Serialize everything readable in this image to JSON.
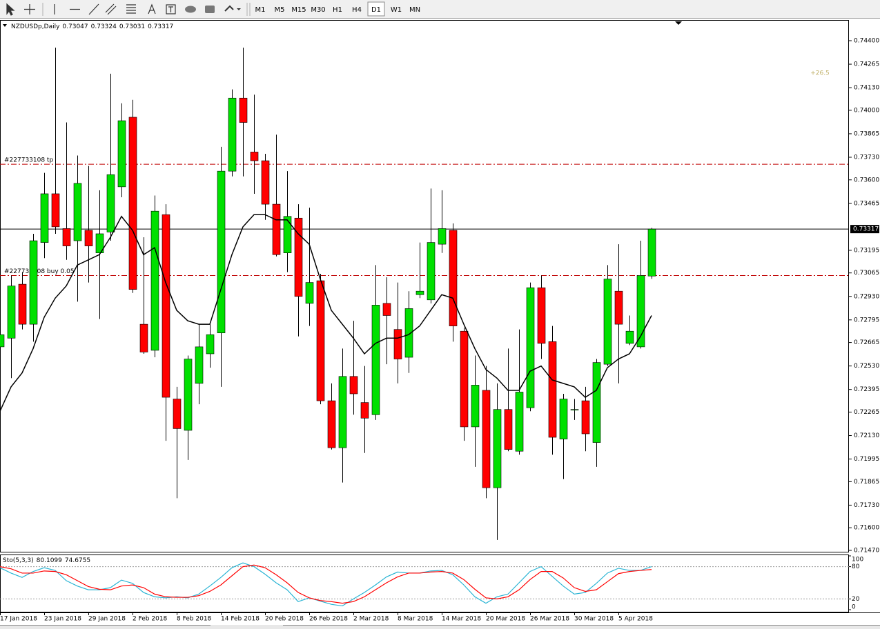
{
  "toolbar": {
    "timeframes": [
      "M1",
      "M5",
      "M15",
      "M30",
      "H1",
      "H4",
      "D1",
      "W1",
      "MN"
    ],
    "active": "D1"
  },
  "chart_data": [
    {
      "type": "candlestick",
      "symbol": "NZDUSDp,Daily",
      "categories": [
        "17 Jan 2018",
        null,
        null,
        null,
        "23 Jan 2018",
        null,
        null,
        null,
        "29 Jan 2018",
        null,
        null,
        null,
        "2 Feb 2018",
        null,
        null,
        null,
        "8 Feb 2018",
        null,
        null,
        null,
        "14 Feb 2018",
        null,
        null,
        null,
        "20 Feb 2018",
        null,
        null,
        null,
        "26 Feb 2018",
        null,
        null,
        null,
        "2 Mar 2018",
        null,
        null,
        null,
        "8 Mar 2018",
        null,
        null,
        null,
        "14 Mar 2018",
        null,
        null,
        null,
        "20 Mar 2018",
        null,
        null,
        null,
        "26 Mar 2018",
        null,
        null,
        null,
        "30 Mar 2018",
        null,
        null,
        null,
        "5 Apr 2018",
        null,
        null,
        null
      ],
      "open": [
        0.7264,
        0.7269,
        0.73,
        0.7277,
        0.7324,
        0.7352,
        0.7332,
        0.7325,
        0.7331,
        0.7318,
        0.733,
        0.7356,
        0.7396,
        0.7277,
        0.7262,
        0.734,
        0.7234,
        0.7216,
        0.7243,
        0.726,
        0.7272,
        0.7365,
        0.7407,
        0.7376,
        0.7371,
        0.7346,
        0.7318,
        0.7338,
        0.7289,
        0.7302,
        0.7233,
        0.7206,
        0.7247,
        0.7232,
        0.7225,
        0.7289,
        0.7274,
        0.7258,
        0.7294,
        0.7291,
        0.7323,
        0.7331,
        0.7273,
        0.7218,
        0.7239,
        0.7183,
        0.7228,
        0.7204,
        0.7229,
        0.7298,
        0.7267,
        0.7211,
        0.7228,
        0.7233,
        0.7209,
        0.7254,
        0.7296,
        0.7266,
        0.7264,
        0.73047
      ],
      "high": [
        0.7277,
        0.7305,
        0.7307,
        0.7329,
        0.7364,
        0.7436,
        0.7393,
        0.7374,
        0.7368,
        0.7354,
        0.7421,
        0.7404,
        0.7406,
        0.7327,
        0.7351,
        0.7346,
        0.7241,
        0.7259,
        0.7277,
        0.7277,
        0.7379,
        0.7412,
        0.7436,
        0.7409,
        0.7375,
        0.7386,
        0.7365,
        0.7346,
        0.7344,
        0.7306,
        0.7243,
        0.7263,
        0.7279,
        0.7253,
        0.7311,
        0.7304,
        0.7301,
        0.7296,
        0.7324,
        0.7355,
        0.7354,
        0.7335,
        0.7275,
        0.7259,
        0.7253,
        0.7243,
        0.7263,
        0.7274,
        0.7301,
        0.7305,
        0.7276,
        0.7237,
        0.7234,
        0.7241,
        0.7257,
        0.7311,
        0.7323,
        0.7282,
        0.7325,
        0.73324
      ],
      "low": [
        0.7245,
        0.7246,
        0.7274,
        0.7267,
        0.7315,
        0.7329,
        0.7314,
        0.729,
        0.7301,
        0.728,
        0.7325,
        0.735,
        0.7295,
        0.726,
        0.7258,
        0.721,
        0.7177,
        0.7199,
        0.7231,
        0.7252,
        0.7241,
        0.7362,
        0.7362,
        0.7352,
        0.7337,
        0.7316,
        0.7307,
        0.727,
        0.7276,
        0.7231,
        0.7205,
        0.7186,
        0.7225,
        0.7203,
        0.7222,
        0.7254,
        0.7243,
        0.7249,
        0.7292,
        0.7289,
        0.7318,
        0.7267,
        0.721,
        0.7195,
        0.7177,
        0.7153,
        0.7204,
        0.7202,
        0.7227,
        0.7257,
        0.7202,
        0.7188,
        0.7222,
        0.7204,
        0.7195,
        0.7253,
        0.7243,
        0.7265,
        0.7263,
        0.73031
      ],
      "close": [
        0.7271,
        0.7299,
        0.7277,
        0.7325,
        0.7352,
        0.7333,
        0.7322,
        0.7358,
        0.7322,
        0.7329,
        0.7363,
        0.7394,
        0.7297,
        0.7261,
        0.7342,
        0.7235,
        0.7217,
        0.7257,
        0.7264,
        0.7271,
        0.7365,
        0.7407,
        0.7393,
        0.7371,
        0.7346,
        0.7317,
        0.7339,
        0.7293,
        0.7301,
        0.7233,
        0.7206,
        0.7247,
        0.7237,
        0.7223,
        0.7288,
        0.7282,
        0.7257,
        0.7286,
        0.7296,
        0.7324,
        0.7332,
        0.7276,
        0.7218,
        0.7242,
        0.7183,
        0.7228,
        0.7205,
        0.7238,
        0.7298,
        0.7266,
        0.7212,
        0.7234,
        0.7228,
        0.7214,
        0.7255,
        0.7303,
        0.7277,
        0.7273,
        0.7305,
        0.73317
      ],
      "up_color": "#00e000",
      "down_color": "#ff0000",
      "ma": {
        "color": "#000000",
        "values": [
          0.7227,
          0.7241,
          0.7249,
          0.7263,
          0.7281,
          0.7292,
          0.7299,
          0.7311,
          0.7314,
          0.7317,
          0.7327,
          0.7339,
          0.7331,
          0.7317,
          0.7321,
          0.7301,
          0.7285,
          0.7279,
          0.7277,
          0.7277,
          0.7297,
          0.7317,
          0.7333,
          0.734,
          0.734,
          0.7337,
          0.7337,
          0.7329,
          0.7323,
          0.7303,
          0.7285,
          0.7277,
          0.7269,
          0.726,
          0.7266,
          0.7269,
          0.7269,
          0.7271,
          0.7276,
          0.7285,
          0.7294,
          0.7292,
          0.7277,
          0.7263,
          0.7251,
          0.7246,
          0.7239,
          0.7239,
          0.725,
          0.7253,
          0.7245,
          0.7243,
          0.7241,
          0.7235,
          0.7239,
          0.7252,
          0.7257,
          0.726,
          0.727,
          0.7282
        ]
      },
      "levels": [
        {
          "label": "#227733108 tp",
          "value": 0.7369,
          "color": "#c00000"
        },
        {
          "label": "#227733108 buy 0.05",
          "value": 0.7305,
          "color": "#c00000"
        }
      ],
      "annotation": "+26.5",
      "ylim": [
        0.71462,
        0.74515
      ],
      "yticks": [
        {
          "value": 0.744,
          "label": "0.74400"
        },
        0.74265,
        {
          "value": 0.7413,
          "label": "0.74130"
        },
        {
          "value": 0.74,
          "label": "0.74000"
        },
        0.73865,
        {
          "value": 0.7373,
          "label": "0.73730"
        },
        {
          "value": 0.736,
          "label": "0.73600"
        },
        0.73465,
        0.73195,
        0.73065,
        {
          "value": 0.7293,
          "label": "0.72930"
        },
        0.72795,
        0.72665,
        {
          "value": 0.7253,
          "label": "0.72530"
        },
        0.72395,
        0.72265,
        {
          "value": 0.7213,
          "label": "0.72130"
        },
        0.71995,
        0.71865,
        {
          "value": 0.7173,
          "label": "0.71730"
        },
        {
          "value": 0.716,
          "label": "0.71600"
        },
        {
          "value": 0.7147,
          "label": "0.71470"
        }
      ]
    },
    {
      "type": "line",
      "title": "Sto(5,3,3)",
      "series": [
        {
          "color": "#2ab4d4",
          "values": [
            78,
            68,
            60,
            71,
            78,
            73,
            54,
            44,
            37,
            37,
            41,
            55,
            49,
            32,
            24,
            22,
            24,
            22,
            29,
            44,
            60,
            78,
            87,
            80,
            66,
            50,
            37,
            15,
            22,
            16,
            10,
            7,
            20,
            32,
            46,
            61,
            70,
            68,
            68,
            72,
            73,
            65,
            46,
            24,
            12,
            24,
            29,
            50,
            71,
            80,
            62,
            44,
            29,
            32,
            49,
            68,
            77,
            73,
            73,
            80.1099
          ]
        },
        {
          "color": "#ff0000",
          "values": [
            80,
            76,
            68,
            68,
            72,
            71,
            65,
            54,
            43,
            38,
            37,
            44,
            46,
            41,
            29,
            24,
            23,
            23,
            26,
            34,
            46,
            63,
            80,
            83,
            78,
            65,
            50,
            32,
            22,
            17,
            15,
            12,
            15,
            24,
            37,
            50,
            61,
            68,
            68,
            70,
            71,
            68,
            56,
            38,
            22,
            20,
            24,
            37,
            56,
            71,
            71,
            59,
            41,
            34,
            37,
            52,
            67,
            71,
            73,
            74.6755
          ]
        }
      ],
      "ylim": [
        0,
        100
      ],
      "yticks": [
        0,
        20,
        80,
        100
      ],
      "levels": [
        20,
        80
      ]
    }
  ]
}
